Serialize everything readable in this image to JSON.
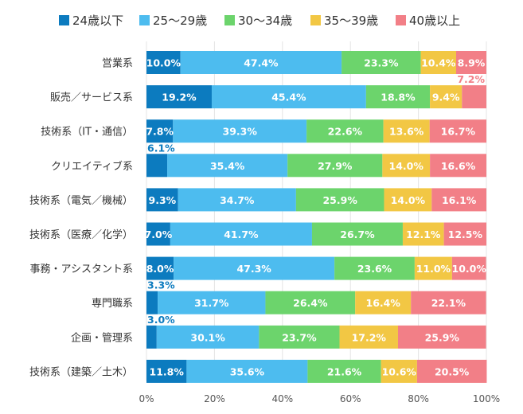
{
  "chart_data": {
    "type": "bar",
    "orientation": "horizontal",
    "stacked": true,
    "title": "",
    "xlabel": "",
    "ylabel": "",
    "xlim": [
      0,
      100
    ],
    "x_ticks": [
      "0%",
      "20%",
      "40%",
      "60%",
      "80%",
      "100%"
    ],
    "grid": true,
    "legend_position": "top",
    "categories": [
      "営業系",
      "販売／サービス系",
      "技術系（IT・通信）",
      "クリエイティブ系",
      "技術系（電気／機械）",
      "技術系（医療／化学）",
      "事務・アシスタント系",
      "専門職系",
      "企画・管理系",
      "技術系（建築／土木）"
    ],
    "series": [
      {
        "name": "24歳以下",
        "color": "#0c7bbf",
        "label_color": "#ffffff",
        "values": [
          10.0,
          19.2,
          7.8,
          6.1,
          9.3,
          7.0,
          8.0,
          3.3,
          3.0,
          11.8
        ],
        "labels": [
          "10.0%",
          "19.2%",
          "7.8%",
          "6.1%",
          "9.3%",
          "7.0%",
          "8.0%",
          "3.3%",
          "3.0%",
          "11.8%"
        ]
      },
      {
        "name": "25〜29歳",
        "color": "#4dbcef",
        "label_color": "#ffffff",
        "values": [
          47.4,
          45.4,
          39.3,
          35.4,
          34.7,
          41.7,
          47.3,
          31.7,
          30.1,
          35.6
        ],
        "labels": [
          "47.4%",
          "45.4%",
          "39.3%",
          "35.4%",
          "34.7%",
          "41.7%",
          "47.3%",
          "31.7%",
          "30.1%",
          "35.6%"
        ]
      },
      {
        "name": "30〜34歳",
        "color": "#6cd46c",
        "label_color": "#ffffff",
        "values": [
          23.3,
          18.8,
          22.6,
          27.9,
          25.9,
          26.7,
          23.6,
          26.4,
          23.7,
          21.6
        ],
        "labels": [
          "23.3%",
          "18.8%",
          "22.6%",
          "27.9%",
          "25.9%",
          "26.7%",
          "23.6%",
          "26.4%",
          "23.7%",
          "21.6%"
        ]
      },
      {
        "name": "35〜39歳",
        "color": "#f2c744",
        "label_color": "#ffffff",
        "values": [
          10.4,
          9.4,
          13.6,
          14.0,
          14.0,
          12.1,
          11.0,
          16.4,
          17.2,
          10.6
        ],
        "labels": [
          "10.4%",
          "9.4%",
          "13.6%",
          "14.0%",
          "14.0%",
          "12.1%",
          "11.0%",
          "16.4%",
          "17.2%",
          "10.6%"
        ]
      },
      {
        "name": "40歳以上",
        "color": "#f27f87",
        "label_color": "#ffffff",
        "values": [
          8.9,
          7.2,
          16.7,
          16.6,
          16.1,
          12.5,
          10.0,
          22.1,
          25.9,
          20.5
        ],
        "labels": [
          "8.9%",
          "7.2%",
          "16.7%",
          "16.6%",
          "16.1%",
          "12.5%",
          "10.0%",
          "22.1%",
          "25.9%",
          "20.5%"
        ]
      }
    ],
    "outside_labels": [
      {
        "category_index": 1,
        "series_index": 4,
        "color": "#f27f87"
      },
      {
        "category_index": 3,
        "series_index": 0,
        "color": "#0c7bbf"
      },
      {
        "category_index": 7,
        "series_index": 0,
        "color": "#0c7bbf"
      },
      {
        "category_index": 8,
        "series_index": 0,
        "color": "#0c7bbf"
      }
    ]
  }
}
